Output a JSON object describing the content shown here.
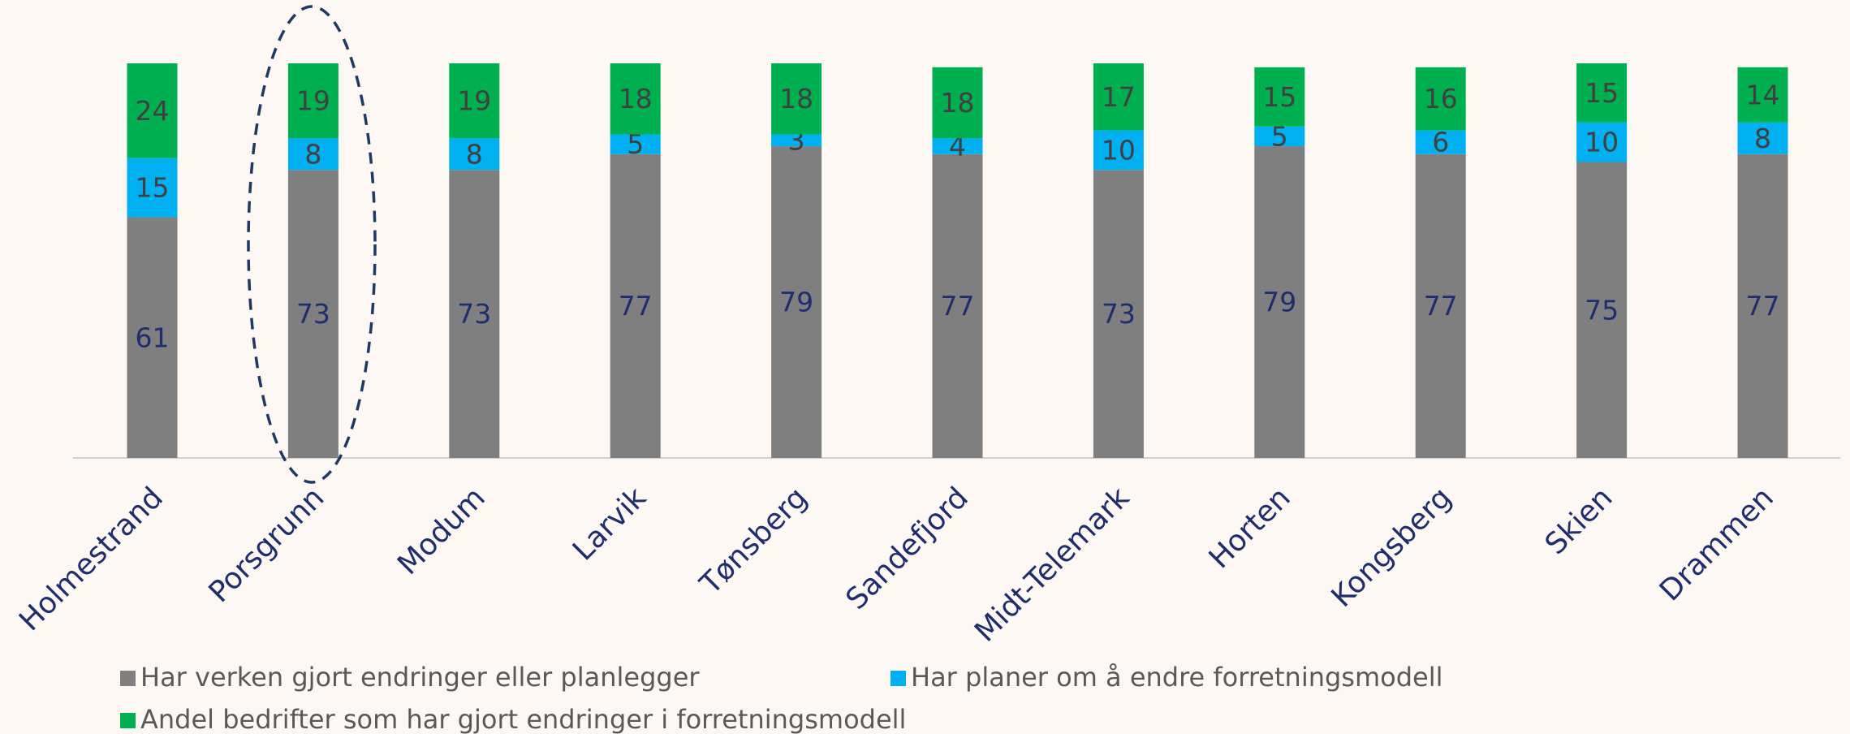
{
  "chart_data": {
    "type": "stacked_bar",
    "categories": [
      "Holmestrand",
      "Porsgrunn",
      "Modum",
      "Larvik",
      "Tønsberg",
      "Sandefjord",
      "Midt-Telemark",
      "Horten",
      "Kongsberg",
      "Skien",
      "Drammen"
    ],
    "series": [
      {
        "name": "Har verken gjort endringer eller planlegger",
        "color": "#7f7f7f",
        "values": [
          61,
          73,
          73,
          77,
          79,
          77,
          73,
          79,
          77,
          75,
          77
        ]
      },
      {
        "name": "Har planer om å endre forretningsmodell",
        "color": "#00b0f0",
        "values": [
          15,
          8,
          8,
          5,
          3,
          4,
          10,
          5,
          6,
          10,
          8
        ]
      },
      {
        "name": "Andel bedrifter som har gjort endringer i forretningsmodell",
        "color": "#00b050",
        "values": [
          24,
          19,
          19,
          18,
          18,
          18,
          17,
          15,
          16,
          15,
          14
        ]
      }
    ],
    "ylim": [
      0,
      100
    ]
  }
}
